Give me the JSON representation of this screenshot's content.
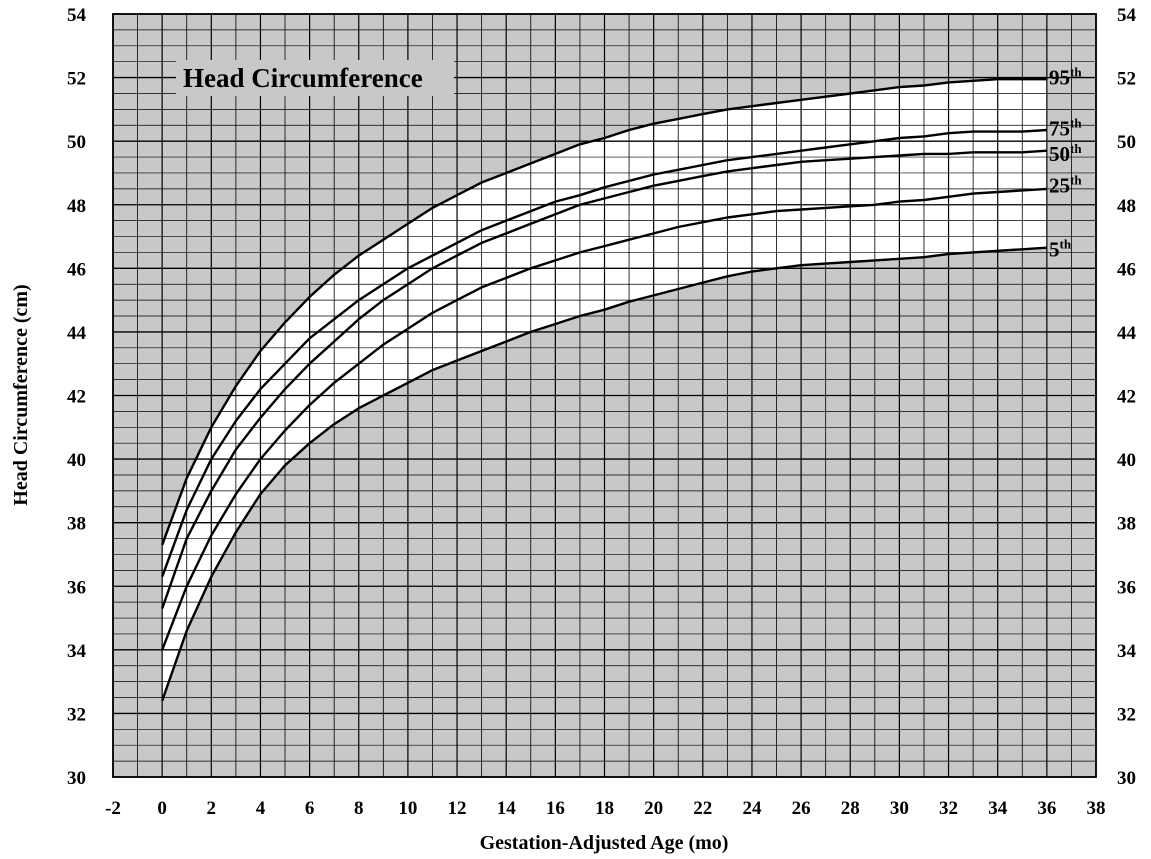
{
  "chart_data": {
    "type": "line",
    "title": "Head Circumference",
    "xlabel": "Gestation-Adjusted Age (mo)",
    "ylabel": "Head Circumference (cm)",
    "xlim": [
      -2,
      38
    ],
    "ylim": [
      30,
      54
    ],
    "x_ticks": [
      "-2",
      "0",
      "2",
      "4",
      "6",
      "8",
      "10",
      "12",
      "14",
      "16",
      "18",
      "20",
      "22",
      "24",
      "26",
      "28",
      "30",
      "32",
      "34",
      "36",
      "38"
    ],
    "y_ticks": [
      "30",
      "32",
      "34",
      "36",
      "38",
      "40",
      "42",
      "44",
      "46",
      "48",
      "50",
      "52",
      "54"
    ],
    "grid": true,
    "background_color": "#c8c8c8",
    "band_color": "#ffffff",
    "line_color": "#000000",
    "x": [
      0,
      1,
      2,
      3,
      4,
      5,
      6,
      7,
      8,
      9,
      10,
      11,
      12,
      13,
      14,
      15,
      16,
      17,
      18,
      19,
      20,
      21,
      22,
      23,
      24,
      25,
      26,
      27,
      28,
      29,
      30,
      31,
      32,
      33,
      34,
      35,
      36
    ],
    "series": [
      {
        "name": "95",
        "label_base": "95",
        "label_sup": "th",
        "values": [
          37.3,
          39.4,
          41.0,
          42.3,
          43.4,
          44.3,
          45.1,
          45.8,
          46.4,
          46.9,
          47.4,
          47.9,
          48.3,
          48.7,
          49.0,
          49.3,
          49.6,
          49.9,
          50.1,
          50.35,
          50.55,
          50.7,
          50.85,
          51.0,
          51.1,
          51.2,
          51.3,
          51.4,
          51.5,
          51.6,
          51.7,
          51.75,
          51.85,
          51.9,
          51.95,
          51.95,
          51.95
        ]
      },
      {
        "name": "75",
        "label_base": "75",
        "label_sup": "th",
        "values": [
          36.3,
          38.4,
          40.0,
          41.2,
          42.2,
          43.0,
          43.8,
          44.4,
          45.0,
          45.5,
          46.0,
          46.4,
          46.8,
          47.2,
          47.5,
          47.8,
          48.1,
          48.3,
          48.55,
          48.75,
          48.95,
          49.1,
          49.25,
          49.4,
          49.5,
          49.6,
          49.7,
          49.8,
          49.9,
          50.0,
          50.1,
          50.15,
          50.25,
          50.3,
          50.3,
          50.3,
          50.35
        ]
      },
      {
        "name": "50",
        "label_base": "50",
        "label_sup": "th",
        "values": [
          35.3,
          37.5,
          39.0,
          40.3,
          41.3,
          42.2,
          43.0,
          43.7,
          44.4,
          45.0,
          45.5,
          46.0,
          46.4,
          46.8,
          47.1,
          47.4,
          47.7,
          48.0,
          48.2,
          48.4,
          48.6,
          48.75,
          48.9,
          49.05,
          49.15,
          49.25,
          49.35,
          49.4,
          49.45,
          49.5,
          49.55,
          49.6,
          49.6,
          49.65,
          49.65,
          49.65,
          49.7
        ]
      },
      {
        "name": "25",
        "label_base": "25",
        "label_sup": "th",
        "values": [
          34.0,
          36.0,
          37.6,
          38.9,
          40.0,
          40.9,
          41.7,
          42.4,
          43.0,
          43.6,
          44.1,
          44.6,
          45.0,
          45.4,
          45.7,
          46.0,
          46.25,
          46.5,
          46.7,
          46.9,
          47.1,
          47.3,
          47.45,
          47.6,
          47.7,
          47.8,
          47.85,
          47.9,
          47.95,
          48.0,
          48.1,
          48.15,
          48.25,
          48.35,
          48.4,
          48.45,
          48.5
        ]
      },
      {
        "name": "5",
        "label_base": "5",
        "label_sup": "th",
        "values": [
          32.4,
          34.6,
          36.3,
          37.7,
          38.9,
          39.8,
          40.5,
          41.1,
          41.6,
          42.0,
          42.4,
          42.8,
          43.1,
          43.4,
          43.7,
          44.0,
          44.25,
          44.5,
          44.7,
          44.95,
          45.15,
          45.35,
          45.55,
          45.75,
          45.9,
          46.0,
          46.1,
          46.15,
          46.2,
          46.25,
          46.3,
          46.35,
          46.45,
          46.5,
          46.55,
          46.6,
          46.65
        ]
      }
    ]
  }
}
